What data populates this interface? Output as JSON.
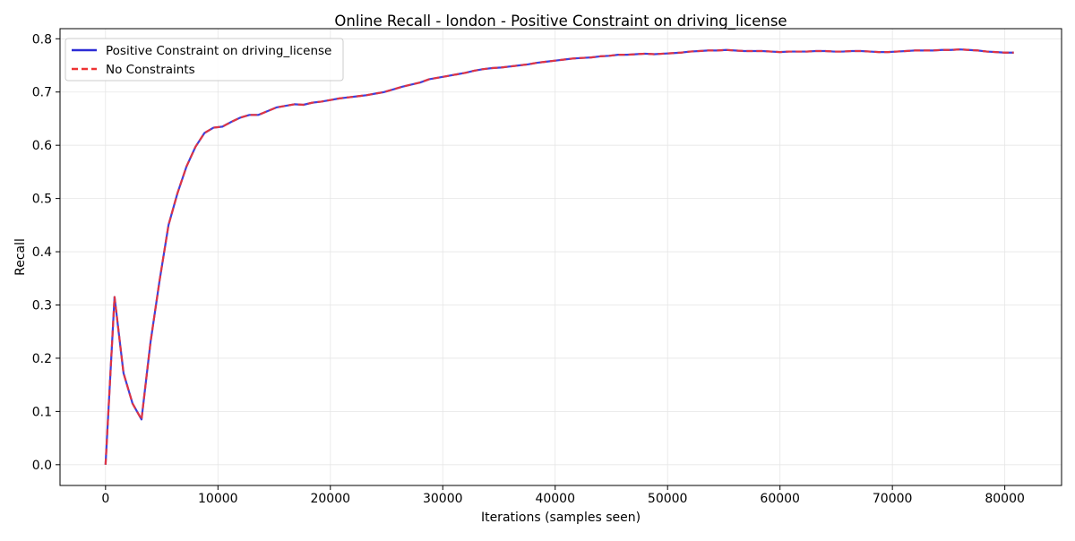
{
  "chart_data": {
    "type": "line",
    "title": "Online Recall - london - Positive Constraint on driving_license",
    "xlabel": "Iterations (samples seen)",
    "ylabel": "Recall",
    "xlim": [
      -4050,
      85050
    ],
    "ylim": [
      -0.039,
      0.819
    ],
    "xticks": [
      0,
      10000,
      20000,
      30000,
      40000,
      50000,
      60000,
      70000,
      80000
    ],
    "xtick_labels": [
      "0",
      "10000",
      "20000",
      "30000",
      "40000",
      "50000",
      "60000",
      "70000",
      "80000"
    ],
    "yticks": [
      0.0,
      0.1,
      0.2,
      0.3,
      0.4,
      0.5,
      0.6,
      0.7,
      0.8
    ],
    "ytick_labels": [
      "0.0",
      "0.1",
      "0.2",
      "0.3",
      "0.4",
      "0.5",
      "0.6",
      "0.7",
      "0.8"
    ],
    "grid": true,
    "legend_position": "top-left",
    "x": [
      0,
      800,
      1600,
      2400,
      3200,
      4000,
      4800,
      5600,
      6400,
      7200,
      8000,
      8800,
      9600,
      10400,
      11200,
      12000,
      12800,
      13600,
      14400,
      15200,
      16000,
      16800,
      17600,
      18400,
      19200,
      20000,
      20800,
      21600,
      22400,
      23200,
      24000,
      24800,
      25600,
      26400,
      27200,
      28000,
      28800,
      29600,
      30400,
      31200,
      32000,
      32800,
      33600,
      34400,
      35200,
      36000,
      36800,
      37600,
      38400,
      39200,
      40000,
      40800,
      41600,
      42400,
      43200,
      44000,
      44800,
      45600,
      46400,
      47200,
      48000,
      48800,
      49600,
      50400,
      51200,
      52000,
      52800,
      53600,
      54400,
      55200,
      56000,
      56800,
      57600,
      58400,
      59200,
      60000,
      60800,
      61600,
      62400,
      63200,
      64000,
      64800,
      65600,
      66400,
      67200,
      68000,
      68800,
      69600,
      70400,
      71200,
      72000,
      72800,
      73600,
      74400,
      75200,
      76000,
      76800,
      77600,
      78400,
      79200,
      80000,
      80800
    ],
    "series": [
      {
        "name": "Positive Constraint on driving_license",
        "color": "#2b2bd6",
        "style": "solid",
        "values": [
          0.0,
          0.315,
          0.172,
          0.115,
          0.085,
          0.23,
          0.345,
          0.45,
          0.51,
          0.56,
          0.597,
          0.623,
          0.633,
          0.635,
          0.644,
          0.652,
          0.657,
          0.657,
          0.664,
          0.671,
          0.674,
          0.677,
          0.676,
          0.68,
          0.682,
          0.685,
          0.688,
          0.69,
          0.692,
          0.694,
          0.697,
          0.7,
          0.705,
          0.71,
          0.714,
          0.718,
          0.724,
          0.727,
          0.73,
          0.733,
          0.736,
          0.74,
          0.743,
          0.745,
          0.746,
          0.748,
          0.75,
          0.752,
          0.755,
          0.757,
          0.759,
          0.761,
          0.763,
          0.764,
          0.765,
          0.767,
          0.768,
          0.77,
          0.77,
          0.771,
          0.772,
          0.771,
          0.772,
          0.773,
          0.774,
          0.776,
          0.777,
          0.778,
          0.778,
          0.779,
          0.778,
          0.777,
          0.777,
          0.777,
          0.776,
          0.775,
          0.776,
          0.776,
          0.776,
          0.777,
          0.777,
          0.776,
          0.776,
          0.777,
          0.777,
          0.776,
          0.775,
          0.775,
          0.776,
          0.777,
          0.778,
          0.778,
          0.778,
          0.779,
          0.779,
          0.78,
          0.779,
          0.778,
          0.776,
          0.775,
          0.774,
          0.774
        ]
      },
      {
        "name": "No Constraints",
        "color": "#ee3333",
        "style": "dashed",
        "values": [
          0.0,
          0.315,
          0.172,
          0.115,
          0.085,
          0.23,
          0.345,
          0.45,
          0.51,
          0.56,
          0.597,
          0.623,
          0.633,
          0.635,
          0.644,
          0.652,
          0.657,
          0.657,
          0.664,
          0.671,
          0.674,
          0.677,
          0.676,
          0.68,
          0.682,
          0.685,
          0.688,
          0.69,
          0.692,
          0.694,
          0.697,
          0.7,
          0.705,
          0.71,
          0.714,
          0.718,
          0.724,
          0.727,
          0.73,
          0.733,
          0.736,
          0.74,
          0.743,
          0.745,
          0.746,
          0.748,
          0.75,
          0.752,
          0.755,
          0.757,
          0.759,
          0.761,
          0.763,
          0.764,
          0.765,
          0.767,
          0.768,
          0.77,
          0.77,
          0.771,
          0.772,
          0.771,
          0.772,
          0.773,
          0.774,
          0.776,
          0.777,
          0.778,
          0.778,
          0.779,
          0.778,
          0.777,
          0.777,
          0.777,
          0.776,
          0.775,
          0.776,
          0.776,
          0.776,
          0.777,
          0.777,
          0.776,
          0.776,
          0.777,
          0.777,
          0.776,
          0.775,
          0.775,
          0.776,
          0.777,
          0.778,
          0.778,
          0.778,
          0.779,
          0.779,
          0.78,
          0.779,
          0.778,
          0.776,
          0.775,
          0.774,
          0.774
        ]
      }
    ]
  }
}
